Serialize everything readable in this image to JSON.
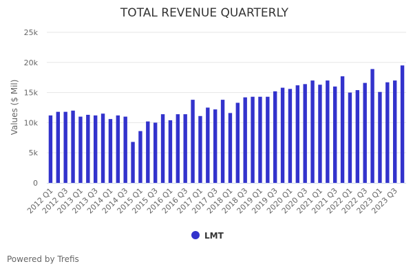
{
  "chart_data": {
    "type": "bar",
    "title": "TOTAL REVENUE QUARTERLY",
    "xlabel": "",
    "ylabel": "Values ($ Mil)",
    "ylim": [
      0,
      25000
    ],
    "yticks": [
      0,
      5000,
      10000,
      15000,
      20000,
      25000
    ],
    "ytick_labels": [
      "0",
      "5k",
      "10k",
      "15k",
      "20k",
      "25k"
    ],
    "grid": true,
    "legend_position": "bottom-center",
    "categories": [
      "2012 Q1",
      "2012 Q2",
      "2012 Q3",
      "2012 Q4",
      "2013 Q1",
      "2013 Q2",
      "2013 Q3",
      "2013 Q4",
      "2014 Q1",
      "2014 Q2",
      "2014 Q3",
      "2014 Q4",
      "2015 Q1",
      "2015 Q2",
      "2015 Q3",
      "2015 Q4",
      "2016 Q1",
      "2016 Q2",
      "2016 Q3",
      "2016 Q4",
      "2017 Q1",
      "2017 Q2",
      "2017 Q3",
      "2017 Q4",
      "2018 Q1",
      "2018 Q2",
      "2018 Q3",
      "2018 Q4",
      "2019 Q1",
      "2019 Q2",
      "2019 Q3",
      "2019 Q4",
      "2020 Q1",
      "2020 Q2",
      "2020 Q3",
      "2020 Q4",
      "2021 Q1",
      "2021 Q2",
      "2021 Q3",
      "2021 Q4",
      "2022 Q1",
      "2022 Q2",
      "2022 Q3",
      "2022 Q4",
      "2023 Q1",
      "2023 Q2",
      "2023 Q3",
      "2023 Q4"
    ],
    "xtick_labels": [
      "2012 Q1",
      "2012 Q3",
      "2013 Q1",
      "2013 Q3",
      "2014 Q1",
      "2014 Q3",
      "2015 Q1",
      "2015 Q3",
      "2016 Q1",
      "2016 Q3",
      "2017 Q1",
      "2017 Q3",
      "2018 Q1",
      "2018 Q3",
      "2019 Q1",
      "2019 Q3",
      "2020 Q1",
      "2020 Q3",
      "2021 Q1",
      "2021 Q3",
      "2022 Q1",
      "2022 Q3",
      "2023 Q1",
      "2023 Q3"
    ],
    "series": [
      {
        "name": "LMT",
        "color": "#3333cc",
        "values": [
          11200,
          11800,
          11800,
          12000,
          11000,
          11300,
          11200,
          11500,
          10600,
          11200,
          11000,
          6800,
          8600,
          10200,
          10000,
          11400,
          10400,
          11400,
          11400,
          13800,
          11100,
          12500,
          12200,
          13800,
          11600,
          13300,
          14200,
          14300,
          14300,
          14300,
          15200,
          15800,
          15600,
          16200,
          16400,
          17000,
          16300,
          17000,
          16000,
          17700,
          15000,
          15400,
          16600,
          18900,
          15100,
          16700,
          17000,
          19500
        ]
      }
    ]
  },
  "footer": {
    "credit": "Powered by Trefis"
  },
  "colors": {
    "bar": "#3333cc",
    "grid": "#e6e6e6",
    "axis": "#ccd6eb"
  }
}
